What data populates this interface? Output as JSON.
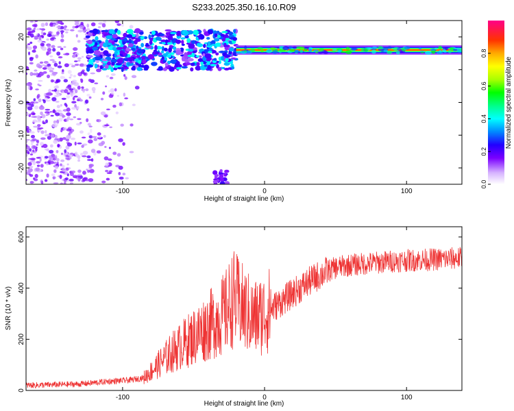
{
  "title": "S233.2025.350.16.10.R09",
  "chart_data": [
    {
      "type": "heatmap",
      "xlabel": "Height of straight line (km)",
      "ylabel": "Frequency (Hz)",
      "xlim": [
        -168,
        139
      ],
      "ylim": [
        -25,
        25
      ],
      "xticks": [
        -100,
        0,
        100
      ],
      "yticks": [
        -20,
        -10,
        0,
        10,
        20
      ],
      "colorbar": {
        "label": "Normalized spectral amplitude",
        "range": [
          0,
          1
        ],
        "ticks": [
          0.0,
          0.2,
          0.4,
          0.6,
          0.8
        ]
      },
      "features": [
        {
          "kind": "narrow-band line",
          "x_range": [
            -20,
            139
          ],
          "frequency_hz": 16,
          "amplitude": 0.95
        },
        {
          "kind": "scattered blobs",
          "x_range": [
            -125,
            -20
          ],
          "frequency_range_hz": [
            10,
            22
          ],
          "amplitude": 0.25
        },
        {
          "kind": "noise",
          "x_range": [
            -168,
            -85
          ],
          "frequency_range_hz": [
            -25,
            25
          ],
          "amplitude": 0.1
        }
      ]
    },
    {
      "type": "line",
      "xlabel": "Height of straight line (km)",
      "ylabel": "SNR (10 * v/v)",
      "xlim": [
        -168,
        139
      ],
      "ylim": [
        0,
        640
      ],
      "xticks": [
        -100,
        0,
        100
      ],
      "yticks": [
        0,
        200,
        400,
        600
      ],
      "series": [
        {
          "color": "#ee3333",
          "x": [
            -168,
            -150,
            -130,
            -110,
            -95,
            -85,
            -75,
            -65,
            -55,
            -45,
            -35,
            -28,
            -22,
            -15,
            -8,
            0,
            10,
            20,
            30,
            40,
            50,
            60,
            70,
            80,
            90,
            100,
            110,
            120,
            130,
            139
          ],
          "values": [
            20,
            22,
            25,
            35,
            40,
            50,
            100,
            150,
            190,
            230,
            270,
            300,
            360,
            320,
            280,
            300,
            340,
            380,
            420,
            455,
            480,
            490,
            495,
            500,
            505,
            508,
            510,
            512,
            515,
            518
          ]
        }
      ]
    }
  ]
}
